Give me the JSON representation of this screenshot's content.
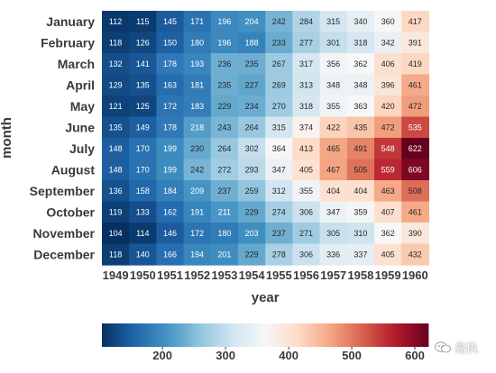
{
  "chart_data": {
    "type": "heatmap",
    "title": "",
    "xlabel": "year",
    "ylabel": "month",
    "x_ticks": [
      "1949",
      "1950",
      "1951",
      "1952",
      "1953",
      "1954",
      "1955",
      "1956",
      "1957",
      "1958",
      "1959",
      "1960"
    ],
    "y_ticks": [
      "January",
      "February",
      "March",
      "April",
      "May",
      "June",
      "July",
      "August",
      "September",
      "October",
      "November",
      "December"
    ],
    "values": [
      [
        112,
        115,
        145,
        171,
        196,
        204,
        242,
        284,
        315,
        340,
        360,
        417
      ],
      [
        118,
        126,
        150,
        180,
        196,
        188,
        233,
        277,
        301,
        318,
        342,
        391
      ],
      [
        132,
        141,
        178,
        193,
        236,
        235,
        267,
        317,
        356,
        362,
        406,
        419
      ],
      [
        129,
        135,
        163,
        181,
        235,
        227,
        269,
        313,
        348,
        348,
        396,
        461
      ],
      [
        121,
        125,
        172,
        183,
        229,
        234,
        270,
        318,
        355,
        363,
        420,
        472
      ],
      [
        135,
        149,
        178,
        218,
        243,
        264,
        315,
        374,
        422,
        435,
        472,
        535
      ],
      [
        148,
        170,
        199,
        230,
        264,
        302,
        364,
        413,
        465,
        491,
        548,
        622
      ],
      [
        148,
        170,
        199,
        242,
        272,
        293,
        347,
        405,
        467,
        505,
        559,
        606
      ],
      [
        136,
        158,
        184,
        209,
        237,
        259,
        312,
        355,
        404,
        404,
        463,
        508
      ],
      [
        119,
        133,
        162,
        191,
        211,
        229,
        274,
        306,
        347,
        359,
        407,
        461
      ],
      [
        104,
        114,
        146,
        172,
        180,
        203,
        237,
        271,
        305,
        310,
        362,
        390
      ],
      [
        118,
        140,
        166,
        194,
        201,
        229,
        278,
        306,
        336,
        337,
        405,
        432
      ]
    ],
    "colormap": "RdBu_r",
    "vmin": 104,
    "vmax": 622,
    "annotated": true,
    "colorbar": {
      "orientation": "horizontal",
      "placement": "bottom",
      "ticks": [
        200,
        300,
        400,
        500,
        600
      ]
    }
  },
  "colors": {
    "low": "#053061",
    "high": "#67001f",
    "label_text": "#3a3a3a"
  },
  "watermark": {
    "icon": "wechat-icon",
    "text": "易执"
  }
}
